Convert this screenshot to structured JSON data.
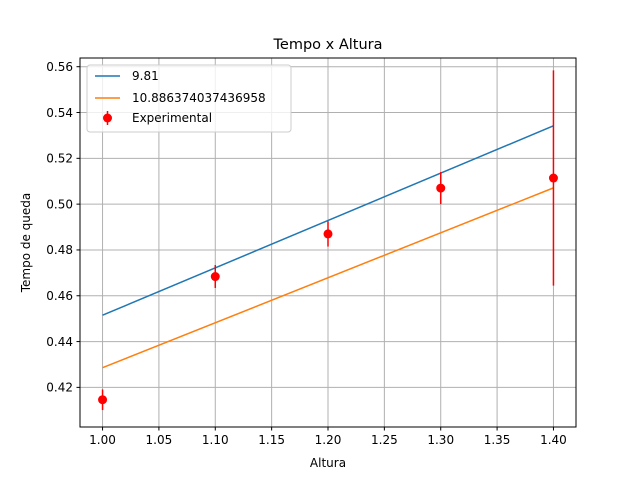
{
  "chart_data": {
    "type": "line",
    "title": "Tempo x Altura",
    "xlabel": "Altura",
    "ylabel": "Tempo de queda",
    "xlim": [
      0.98,
      1.42
    ],
    "ylim": [
      0.4027,
      0.5638
    ],
    "xticks": [
      "1.00",
      "1.05",
      "1.10",
      "1.15",
      "1.20",
      "1.25",
      "1.30",
      "1.35",
      "1.40"
    ],
    "xtick_values": [
      1.0,
      1.05,
      1.1,
      1.15,
      1.2,
      1.25,
      1.3,
      1.35,
      1.4
    ],
    "yticks": [
      "0.42",
      "0.44",
      "0.46",
      "0.48",
      "0.50",
      "0.52",
      "0.54",
      "0.56"
    ],
    "ytick_values": [
      0.42,
      0.44,
      0.46,
      0.48,
      0.5,
      0.52,
      0.54,
      0.56
    ],
    "grid": true,
    "legend_position": "top-left",
    "series": [
      {
        "name": "9.81",
        "kind": "line",
        "color": "#1f77b4",
        "x": [
          1.0,
          1.4
        ],
        "y": [
          0.4515,
          0.5342
        ]
      },
      {
        "name": "10.886374037436958",
        "kind": "line",
        "color": "#ff7f0e",
        "x": [
          1.0,
          1.4
        ],
        "y": [
          0.4286,
          0.5071
        ]
      },
      {
        "name": "Experimental",
        "kind": "errorbar",
        "color": "#ff0000",
        "x": [
          1.0,
          1.1,
          1.2,
          1.3,
          1.4
        ],
        "y": [
          0.4146,
          0.4684,
          0.487,
          0.507,
          0.5114
        ],
        "yerr": [
          0.0045,
          0.005,
          0.0055,
          0.007,
          0.047
        ]
      }
    ]
  }
}
